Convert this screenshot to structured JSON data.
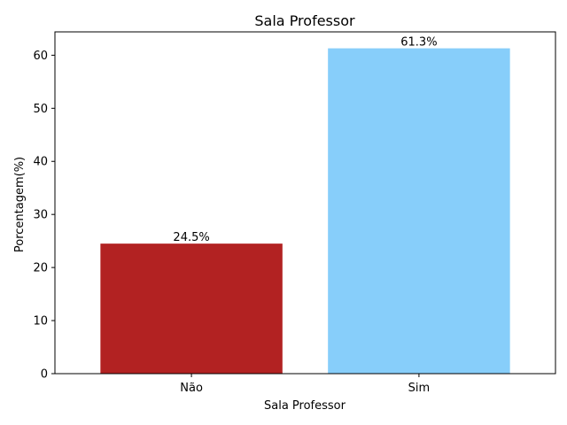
{
  "chart_data": {
    "type": "bar",
    "title": "Sala Professor",
    "xlabel": "Sala Professor",
    "ylabel": "Porcentagem(%)",
    "categories": [
      "Não",
      "Sim"
    ],
    "values": [
      24.5,
      61.3
    ],
    "value_labels": [
      "24.5%",
      "61.3%"
    ],
    "colors": [
      "#b22222",
      "#87cefa"
    ],
    "ylim": [
      0,
      64.4
    ],
    "yticks": [
      0,
      10,
      20,
      30,
      40,
      50,
      60
    ],
    "grid": false,
    "legend": "none"
  }
}
